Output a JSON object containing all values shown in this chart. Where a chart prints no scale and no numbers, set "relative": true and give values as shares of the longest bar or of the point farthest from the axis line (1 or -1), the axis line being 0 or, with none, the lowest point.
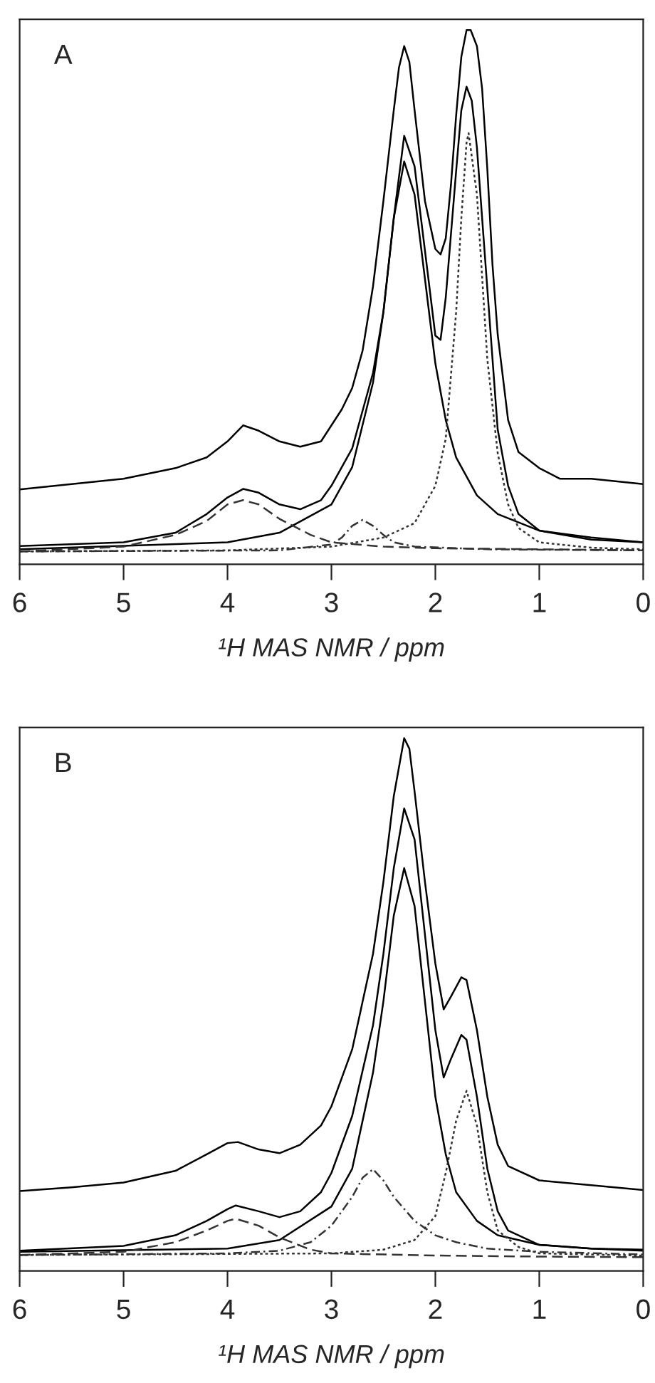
{
  "chart_data": [
    {
      "type": "line",
      "relative": true,
      "annotations": [
        "A"
      ],
      "xlabel": "¹H MAS NMR / ppm",
      "xlim": [
        6,
        0
      ],
      "xticks": [
        6,
        5,
        4,
        3,
        2,
        1,
        0
      ],
      "tick_labels": "x",
      "grid": false,
      "marker": "none",
      "series": [
        {
          "color": "#000000",
          "line_style": "solid",
          "x": [
            6,
            5.5,
            5,
            4.5,
            4.2,
            4,
            3.85,
            3.7,
            3.5,
            3.3,
            3.1,
            3,
            2.9,
            2.8,
            2.7,
            2.6,
            2.5,
            2.4,
            2.35,
            2.3,
            2.25,
            2.2,
            2.1,
            2,
            1.95,
            1.9,
            1.85,
            1.8,
            1.75,
            1.7,
            1.66,
            1.6,
            1.55,
            1.5,
            1.45,
            1.4,
            1.3,
            1.2,
            1,
            0.8,
            0.5,
            0
          ],
          "values": [
            0.14,
            0.15,
            0.16,
            0.18,
            0.2,
            0.23,
            0.26,
            0.25,
            0.23,
            0.22,
            0.23,
            0.26,
            0.29,
            0.33,
            0.4,
            0.52,
            0.68,
            0.85,
            0.93,
            0.97,
            0.94,
            0.85,
            0.68,
            0.59,
            0.58,
            0.61,
            0.71,
            0.84,
            0.95,
            1.0,
            1.0,
            0.97,
            0.89,
            0.74,
            0.56,
            0.43,
            0.27,
            0.21,
            0.18,
            0.16,
            0.16,
            0.15
          ]
        },
        {
          "color": "#000000",
          "line_style": "solid",
          "x": [
            6,
            5,
            4.5,
            4.2,
            4,
            3.85,
            3.7,
            3.5,
            3.3,
            3.1,
            3,
            2.8,
            2.6,
            2.5,
            2.4,
            2.3,
            2.2,
            2.1,
            2,
            1.95,
            1.9,
            1.8,
            1.75,
            1.7,
            1.65,
            1.6,
            1.5,
            1.4,
            1.3,
            1.2,
            1,
            0.5,
            0
          ],
          "values": [
            0.034,
            0.041,
            0.059,
            0.094,
            0.125,
            0.141,
            0.134,
            0.112,
            0.103,
            0.12,
            0.147,
            0.217,
            0.358,
            0.472,
            0.648,
            0.802,
            0.745,
            0.587,
            0.428,
            0.42,
            0.499,
            0.736,
            0.85,
            0.894,
            0.868,
            0.78,
            0.516,
            0.252,
            0.147,
            0.094,
            0.063,
            0.046,
            0.041
          ]
        },
        {
          "color": "#000000",
          "line_style": "solid",
          "x": [
            6,
            4,
            3.5,
            3,
            2.8,
            2.6,
            2.5,
            2.4,
            2.3,
            2.2,
            2.1,
            2,
            1.9,
            1.8,
            1.6,
            1.4,
            1,
            0.5,
            0
          ],
          "values": [
            0.028,
            0.041,
            0.059,
            0.112,
            0.182,
            0.34,
            0.472,
            0.648,
            0.754,
            0.692,
            0.534,
            0.376,
            0.27,
            0.2,
            0.129,
            0.094,
            0.063,
            0.05,
            0.041
          ]
        },
        {
          "color": "#333333",
          "line_style": "dotted",
          "x": [
            6,
            4,
            3,
            2.5,
            2.2,
            2,
            1.9,
            1.8,
            1.75,
            1.7,
            1.68,
            1.6,
            1.5,
            1.4,
            1.3,
            1.2,
            1,
            0.5,
            0
          ],
          "values": [
            0.024,
            0.026,
            0.033,
            0.05,
            0.077,
            0.147,
            0.235,
            0.472,
            0.648,
            0.789,
            0.807,
            0.692,
            0.384,
            0.208,
            0.112,
            0.068,
            0.041,
            0.031,
            0.028
          ]
        },
        {
          "color": "#333333",
          "line_style": "dashed",
          "x": [
            6,
            5,
            4.5,
            4.2,
            4,
            3.85,
            3.7,
            3.5,
            3.2,
            3,
            2.5,
            2,
            1,
            0
          ],
          "values": [
            0.024,
            0.033,
            0.055,
            0.081,
            0.112,
            0.12,
            0.112,
            0.085,
            0.055,
            0.041,
            0.033,
            0.03,
            0.028,
            0.026
          ]
        },
        {
          "color": "#333333",
          "line_style": "dashdot",
          "x": [
            6,
            3.5,
            3,
            2.9,
            2.8,
            2.7,
            2.6,
            2.5,
            2.4,
            2.2,
            1.5,
            0
          ],
          "values": [
            0.024,
            0.026,
            0.037,
            0.05,
            0.072,
            0.083,
            0.072,
            0.055,
            0.041,
            0.033,
            0.028,
            0.026
          ]
        }
      ]
    },
    {
      "type": "line",
      "relative": true,
      "annotations": [
        "B"
      ],
      "xlabel": "¹H MAS NMR / ppm",
      "xlim": [
        6,
        0
      ],
      "xticks": [
        6,
        5,
        4,
        3,
        2,
        1,
        0
      ],
      "tick_labels": "x",
      "grid": false,
      "marker": "none",
      "series": [
        {
          "color": "#000000",
          "line_style": "solid",
          "x": [
            6,
            5.5,
            5,
            4.5,
            4.2,
            4,
            3.9,
            3.7,
            3.5,
            3.3,
            3.1,
            3,
            2.8,
            2.6,
            2.5,
            2.4,
            2.3,
            2.25,
            2.2,
            2.1,
            2,
            1.92,
            1.85,
            1.75,
            1.7,
            1.6,
            1.5,
            1.4,
            1.3,
            1,
            0.5,
            0
          ],
          "values": [
            0.15,
            0.157,
            0.166,
            0.188,
            0.219,
            0.24,
            0.242,
            0.228,
            0.221,
            0.237,
            0.273,
            0.309,
            0.416,
            0.595,
            0.73,
            0.891,
            1.0,
            0.98,
            0.9,
            0.73,
            0.577,
            0.491,
            0.515,
            0.551,
            0.546,
            0.452,
            0.327,
            0.237,
            0.197,
            0.17,
            0.161,
            0.152
          ]
        },
        {
          "color": "#000000",
          "line_style": "solid",
          "x": [
            6,
            5,
            4.5,
            4.2,
            4,
            3.92,
            3.7,
            3.5,
            3.3,
            3.1,
            3,
            2.8,
            2.6,
            2.5,
            2.4,
            2.3,
            2.2,
            2.1,
            2,
            1.92,
            1.85,
            1.75,
            1.7,
            1.6,
            1.5,
            1.4,
            1.3,
            1,
            0.5,
            0
          ],
          "values": [
            0.038,
            0.047,
            0.067,
            0.094,
            0.116,
            0.123,
            0.112,
            0.101,
            0.112,
            0.148,
            0.184,
            0.291,
            0.461,
            0.595,
            0.756,
            0.868,
            0.81,
            0.631,
            0.452,
            0.363,
            0.398,
            0.443,
            0.434,
            0.327,
            0.192,
            0.112,
            0.076,
            0.049,
            0.042,
            0.04
          ]
        },
        {
          "color": "#000000",
          "line_style": "solid",
          "x": [
            6,
            4,
            3.5,
            3,
            2.8,
            2.6,
            2.5,
            2.4,
            2.3,
            2.2,
            2.1,
            2,
            1.9,
            1.8,
            1.6,
            1.4,
            1,
            0.5,
            0
          ],
          "values": [
            0.036,
            0.042,
            0.058,
            0.121,
            0.192,
            0.372,
            0.506,
            0.667,
            0.756,
            0.685,
            0.506,
            0.327,
            0.219,
            0.148,
            0.094,
            0.067,
            0.049,
            0.042,
            0.038
          ]
        },
        {
          "color": "#333333",
          "line_style": "dotted",
          "x": [
            6,
            3,
            2.5,
            2.2,
            2,
            1.9,
            1.8,
            1.7,
            1.6,
            1.5,
            1.4,
            1.2,
            1,
            0
          ],
          "values": [
            0.03,
            0.033,
            0.04,
            0.058,
            0.103,
            0.184,
            0.282,
            0.338,
            0.273,
            0.148,
            0.076,
            0.045,
            0.033,
            0.029
          ]
        },
        {
          "color": "#333333",
          "line_style": "dashed",
          "x": [
            6,
            5,
            4.5,
            4.2,
            4,
            3.92,
            3.7,
            3.5,
            3.2,
            3,
            2,
            1,
            0
          ],
          "values": [
            0.03,
            0.036,
            0.054,
            0.076,
            0.094,
            0.098,
            0.085,
            0.063,
            0.04,
            0.033,
            0.029,
            0.027,
            0.026
          ]
        },
        {
          "color": "#333333",
          "line_style": "dashdot",
          "x": [
            6,
            4,
            3.5,
            3.2,
            3,
            2.8,
            2.7,
            2.6,
            2.5,
            2.4,
            2.2,
            2,
            1.8,
            1.5,
            1,
            0
          ],
          "values": [
            0.03,
            0.033,
            0.038,
            0.054,
            0.085,
            0.139,
            0.175,
            0.191,
            0.17,
            0.139,
            0.094,
            0.067,
            0.054,
            0.042,
            0.036,
            0.031
          ]
        }
      ]
    }
  ]
}
